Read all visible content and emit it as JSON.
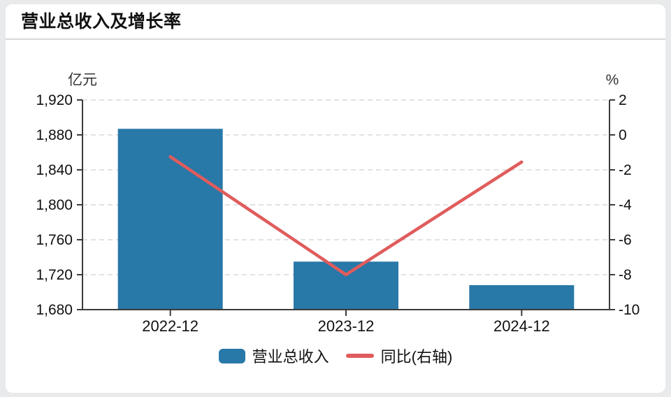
{
  "header": {
    "title": "营业总收入及增长率"
  },
  "chart_data": {
    "type": "combo-bar-line",
    "categories": [
      "2022-12",
      "2023-12",
      "2024-12"
    ],
    "series": [
      {
        "name": "营业总收入",
        "type": "bar",
        "axis": "left",
        "unit": "亿元",
        "color": "#2878a8",
        "values": [
          1887,
          1735,
          1708
        ]
      },
      {
        "name": "同比(右轴)",
        "type": "line",
        "axis": "right",
        "unit": "%",
        "color": "#e05c5c",
        "values": [
          -1.25,
          -8.0,
          -1.55
        ]
      }
    ],
    "left_axis": {
      "label": "亿元",
      "min": 1680,
      "max": 1920,
      "ticks": [
        1680,
        1720,
        1760,
        1800,
        1840,
        1880,
        1920
      ],
      "tick_labels": [
        "1,680",
        "1,720",
        "1,760",
        "1,800",
        "1,840",
        "1,880",
        "1,920"
      ]
    },
    "right_axis": {
      "label": "%",
      "min": -10,
      "max": 2,
      "ticks": [
        -10,
        -8,
        -6,
        -4,
        -2,
        0,
        2
      ],
      "tick_labels": [
        "-10",
        "-8",
        "-6",
        "-4",
        "-2",
        "0",
        "2"
      ]
    },
    "grid": true,
    "legend_position": "bottom"
  }
}
